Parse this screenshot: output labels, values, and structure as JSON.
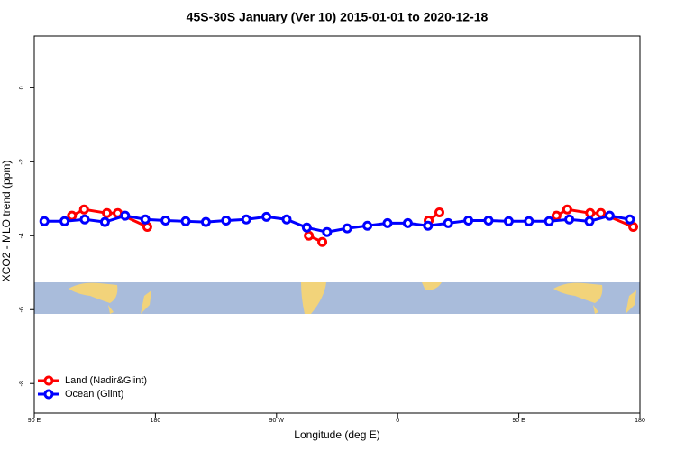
{
  "chart_data": {
    "type": "line",
    "title": "45S-30S January (Ver 10)   2015-01-01 to 2020-12-18",
    "x_label": "Longitude (deg E)",
    "y_label": "XCO2 - MLO trend (ppm)",
    "xlim": [
      90,
      540
    ],
    "ylim": [
      -8.8,
      1.4
    ],
    "xticks": [
      {
        "value": 90,
        "label": "90 E"
      },
      180,
      {
        "value": 270,
        "label": "90 W"
      },
      {
        "value": 360,
        "label": "0"
      },
      {
        "value": 450,
        "label": "90 E"
      },
      {
        "value": 540,
        "label": "180"
      }
    ],
    "yticks": [
      0,
      -2,
      -4,
      -6,
      -8
    ],
    "legend": "bottom-left",
    "series": [
      {
        "name": "Land (Nadir&Glint)",
        "color": "#ff0000",
        "x": [
          118,
          127,
          144,
          152,
          174,
          null,
          294,
          304,
          null,
          383,
          391,
          null,
          478,
          486,
          503,
          511,
          535
        ],
        "values": [
          -3.46,
          -3.29,
          -3.39,
          -3.39,
          -3.76,
          null,
          -4.0,
          -4.17,
          null,
          -3.59,
          -3.37,
          null,
          -3.46,
          -3.29,
          -3.39,
          -3.39,
          -3.76
        ]
      },
      {
        "name": "Ocean (Glint)",
        "color": "#0000ff",
        "x": [
          97.5,
          112.5,
          127.5,
          142.5,
          157.5,
          172.5,
          187.5,
          202.5,
          217.5,
          232.5,
          247.5,
          262.5,
          277.5,
          292.5,
          307.5,
          322.5,
          337.5,
          352.5,
          367.5,
          382.5,
          397.5,
          412.5,
          427.5,
          442.5,
          457.5,
          472.5,
          487.5,
          502.5,
          517.5,
          532.5
        ],
        "values": [
          -3.61,
          -3.61,
          -3.56,
          -3.63,
          -3.46,
          -3.56,
          -3.59,
          -3.61,
          -3.63,
          -3.59,
          -3.56,
          -3.49,
          -3.56,
          -3.78,
          -3.9,
          -3.8,
          -3.73,
          -3.66,
          -3.66,
          -3.73,
          -3.66,
          -3.59,
          -3.59,
          -3.61,
          -3.61,
          -3.61,
          -3.56,
          -3.61,
          -3.46,
          -3.56
        ]
      }
    ]
  }
}
